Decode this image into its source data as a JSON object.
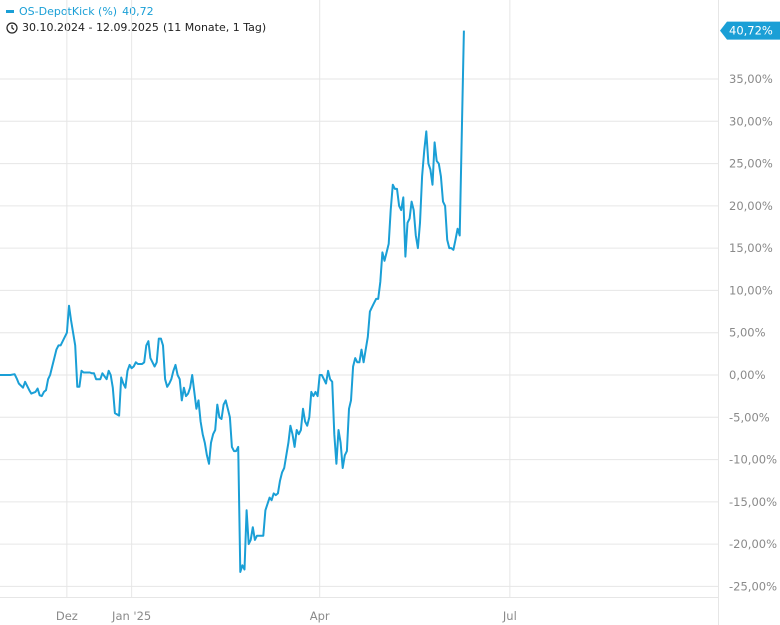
{
  "legend": {
    "series_name": "OS-DepotKick (%)",
    "last_value": "40,72"
  },
  "range_label": "30.10.2024 - 12.09.2025",
  "range_span": "(11 Monate, 1 Tag)",
  "colors": {
    "line": "#1a9fd6",
    "grid": "#e6e6e6",
    "tick_text": "#8a8a8a"
  },
  "icons": {
    "range": "clock-icon"
  },
  "chart_data": {
    "type": "line",
    "title": "",
    "xlabel": "",
    "ylabel": "",
    "ylim": [
      -27,
      41
    ],
    "y_ticks": [
      35,
      30,
      25,
      20,
      15,
      10,
      5,
      0,
      -5,
      -10,
      -15,
      -20,
      -25
    ],
    "y_tick_labels": [
      "35,00%",
      "30,00%",
      "25,00%",
      "20,00%",
      "15,00%",
      "10,00%",
      "5,00%",
      "0,00%",
      "-5,00%",
      "-10,00%",
      "-15,00%",
      "-20,00%",
      "-25,00%"
    ],
    "x_ticks": [
      {
        "label": "Dez",
        "date": "2024-12-01"
      },
      {
        "label": "Jan '25",
        "date": "2025-01-01"
      },
      {
        "label": "Apr",
        "date": "2025-04-01"
      },
      {
        "label": "Jul",
        "date": "2025-07-01"
      }
    ],
    "x_range": [
      "2024-10-30",
      "2025-09-30"
    ],
    "last_value_label": "40,72%",
    "series": [
      {
        "name": "OS-DepotKick (%)",
        "points": [
          [
            "2024-10-30",
            0.0
          ],
          [
            "2024-11-02",
            0.0
          ],
          [
            "2024-11-04",
            0.0
          ],
          [
            "2024-11-06",
            0.1
          ],
          [
            "2024-11-07",
            -0.4
          ],
          [
            "2024-11-08",
            -1.0
          ],
          [
            "2024-11-10",
            -1.5
          ],
          [
            "2024-11-11",
            -0.8
          ],
          [
            "2024-11-13",
            -1.8
          ],
          [
            "2024-11-14",
            -2.2
          ],
          [
            "2024-11-16",
            -2.0
          ],
          [
            "2024-11-17",
            -1.6
          ],
          [
            "2024-11-18",
            -2.4
          ],
          [
            "2024-11-19",
            -2.5
          ],
          [
            "2024-11-20",
            -2.0
          ],
          [
            "2024-11-21",
            -1.8
          ],
          [
            "2024-11-22",
            -0.5
          ],
          [
            "2024-11-23",
            0.0
          ],
          [
            "2024-11-24",
            1.0
          ],
          [
            "2024-11-25",
            2.0
          ],
          [
            "2024-11-26",
            3.0
          ],
          [
            "2024-11-27",
            3.5
          ],
          [
            "2024-11-28",
            3.5
          ],
          [
            "2024-11-29",
            4.0
          ],
          [
            "2024-12-01",
            5.0
          ],
          [
            "2024-12-02",
            8.2
          ],
          [
            "2024-12-03",
            6.5
          ],
          [
            "2024-12-04",
            5.0
          ],
          [
            "2024-12-05",
            3.5
          ],
          [
            "2024-12-06",
            -1.4
          ],
          [
            "2024-12-07",
            -1.4
          ],
          [
            "2024-12-08",
            0.5
          ],
          [
            "2024-12-09",
            0.3
          ],
          [
            "2024-12-10",
            0.3
          ],
          [
            "2024-12-12",
            0.3
          ],
          [
            "2024-12-13",
            0.2
          ],
          [
            "2024-12-14",
            0.2
          ],
          [
            "2024-12-15",
            -0.5
          ],
          [
            "2024-12-16",
            -0.5
          ],
          [
            "2024-12-17",
            -0.5
          ],
          [
            "2024-12-18",
            0.2
          ],
          [
            "2024-12-20",
            -0.5
          ],
          [
            "2024-12-21",
            0.5
          ],
          [
            "2024-12-22",
            0.0
          ],
          [
            "2024-12-23",
            -1.5
          ],
          [
            "2024-12-24",
            -4.5
          ],
          [
            "2024-12-26",
            -4.8
          ],
          [
            "2024-12-27",
            -0.3
          ],
          [
            "2024-12-28",
            -1.0
          ],
          [
            "2024-12-29",
            -1.5
          ],
          [
            "2024-12-30",
            0.5
          ],
          [
            "2024-12-31",
            1.2
          ],
          [
            "2025-01-01",
            0.8
          ],
          [
            "2025-01-02",
            1.0
          ],
          [
            "2025-01-03",
            1.5
          ],
          [
            "2025-01-04",
            1.3
          ],
          [
            "2025-01-06",
            1.3
          ],
          [
            "2025-01-07",
            1.5
          ],
          [
            "2025-01-08",
            3.5
          ],
          [
            "2025-01-09",
            4.0
          ],
          [
            "2025-01-10",
            2.0
          ],
          [
            "2025-01-11",
            1.5
          ],
          [
            "2025-01-12",
            1.0
          ],
          [
            "2025-01-13",
            1.5
          ],
          [
            "2025-01-14",
            4.3
          ],
          [
            "2025-01-15",
            4.3
          ],
          [
            "2025-01-16",
            3.5
          ],
          [
            "2025-01-17",
            -0.5
          ],
          [
            "2025-01-18",
            -1.4
          ],
          [
            "2025-01-19",
            -1.0
          ],
          [
            "2025-01-20",
            -0.5
          ],
          [
            "2025-01-21",
            0.5
          ],
          [
            "2025-01-22",
            1.2
          ],
          [
            "2025-01-23",
            0.0
          ],
          [
            "2025-01-24",
            -0.5
          ],
          [
            "2025-01-25",
            -3.0
          ],
          [
            "2025-01-26",
            -1.5
          ],
          [
            "2025-01-27",
            -2.5
          ],
          [
            "2025-01-28",
            -2.2
          ],
          [
            "2025-01-29",
            -1.5
          ],
          [
            "2025-01-30",
            0.0
          ],
          [
            "2025-01-31",
            -2.0
          ],
          [
            "2025-02-01",
            -4.0
          ],
          [
            "2025-02-02",
            -3.0
          ],
          [
            "2025-02-03",
            -5.5
          ],
          [
            "2025-02-04",
            -7.0
          ],
          [
            "2025-02-05",
            -8.0
          ],
          [
            "2025-02-06",
            -9.5
          ],
          [
            "2025-02-07",
            -10.5
          ],
          [
            "2025-02-08",
            -8.0
          ],
          [
            "2025-02-09",
            -7.0
          ],
          [
            "2025-02-10",
            -6.5
          ],
          [
            "2025-02-11",
            -3.5
          ],
          [
            "2025-02-12",
            -5.0
          ],
          [
            "2025-02-13",
            -5.2
          ],
          [
            "2025-02-14",
            -3.5
          ],
          [
            "2025-02-15",
            -3.0
          ],
          [
            "2025-02-16",
            -4.0
          ],
          [
            "2025-02-17",
            -5.0
          ],
          [
            "2025-02-18",
            -8.5
          ],
          [
            "2025-02-19",
            -9.0
          ],
          [
            "2025-02-20",
            -9.0
          ],
          [
            "2025-02-21",
            -8.5
          ],
          [
            "2025-02-22",
            -23.3
          ],
          [
            "2025-02-23",
            -22.5
          ],
          [
            "2025-02-24",
            -23.0
          ],
          [
            "2025-02-25",
            -16.0
          ],
          [
            "2025-02-26",
            -20.0
          ],
          [
            "2025-02-27",
            -19.5
          ],
          [
            "2025-02-28",
            -18.0
          ],
          [
            "2025-03-01",
            -19.5
          ],
          [
            "2025-03-02",
            -19.0
          ],
          [
            "2025-03-03",
            -19.0
          ],
          [
            "2025-03-05",
            -19.0
          ],
          [
            "2025-03-06",
            -16.0
          ],
          [
            "2025-03-08",
            -14.5
          ],
          [
            "2025-03-09",
            -14.8
          ],
          [
            "2025-03-10",
            -14.0
          ],
          [
            "2025-03-11",
            -14.2
          ],
          [
            "2025-03-12",
            -14.0
          ],
          [
            "2025-03-13",
            -12.5
          ],
          [
            "2025-03-14",
            -11.5
          ],
          [
            "2025-03-15",
            -11.0
          ],
          [
            "2025-03-16",
            -9.5
          ],
          [
            "2025-03-17",
            -8.0
          ],
          [
            "2025-03-18",
            -6.0
          ],
          [
            "2025-03-19",
            -7.0
          ],
          [
            "2025-03-20",
            -8.5
          ],
          [
            "2025-03-21",
            -6.5
          ],
          [
            "2025-03-22",
            -7.0
          ],
          [
            "2025-03-23",
            -6.5
          ],
          [
            "2025-03-24",
            -4.0
          ],
          [
            "2025-03-25",
            -5.5
          ],
          [
            "2025-03-26",
            -6.0
          ],
          [
            "2025-03-27",
            -5.0
          ],
          [
            "2025-03-28",
            -2.0
          ],
          [
            "2025-03-29",
            -2.5
          ],
          [
            "2025-03-30",
            -2.0
          ],
          [
            "2025-03-31",
            -2.5
          ],
          [
            "2025-04-01",
            0.0
          ],
          [
            "2025-04-02",
            0.0
          ],
          [
            "2025-04-03",
            -0.5
          ],
          [
            "2025-04-04",
            -1.0
          ],
          [
            "2025-04-05",
            0.5
          ],
          [
            "2025-04-06",
            -0.5
          ],
          [
            "2025-04-07",
            -0.8
          ],
          [
            "2025-04-08",
            -7.0
          ],
          [
            "2025-04-09",
            -10.5
          ],
          [
            "2025-04-10",
            -6.5
          ],
          [
            "2025-04-11",
            -8.0
          ],
          [
            "2025-04-12",
            -11.0
          ],
          [
            "2025-04-13",
            -9.5
          ],
          [
            "2025-04-14",
            -9.0
          ],
          [
            "2025-04-15",
            -4.0
          ],
          [
            "2025-04-16",
            -3.0
          ],
          [
            "2025-04-17",
            1.0
          ],
          [
            "2025-04-18",
            2.0
          ],
          [
            "2025-04-19",
            1.5
          ],
          [
            "2025-04-20",
            1.5
          ],
          [
            "2025-04-21",
            3.0
          ],
          [
            "2025-04-22",
            1.5
          ],
          [
            "2025-04-23",
            3.0
          ],
          [
            "2025-04-24",
            4.5
          ],
          [
            "2025-04-25",
            7.5
          ],
          [
            "2025-04-26",
            8.0
          ],
          [
            "2025-04-27",
            8.5
          ],
          [
            "2025-04-28",
            9.0
          ],
          [
            "2025-04-29",
            9.0
          ],
          [
            "2025-04-30",
            11.0
          ],
          [
            "2025-05-01",
            14.5
          ],
          [
            "2025-05-02",
            13.5
          ],
          [
            "2025-05-03",
            14.5
          ],
          [
            "2025-05-04",
            15.5
          ],
          [
            "2025-05-05",
            19.5
          ],
          [
            "2025-05-06",
            22.5
          ],
          [
            "2025-05-07",
            22.0
          ],
          [
            "2025-05-08",
            22.0
          ],
          [
            "2025-05-09",
            20.0
          ],
          [
            "2025-05-10",
            19.5
          ],
          [
            "2025-05-11",
            21.0
          ],
          [
            "2025-05-12",
            14.0
          ],
          [
            "2025-05-13",
            18.0
          ],
          [
            "2025-05-14",
            18.5
          ],
          [
            "2025-05-15",
            20.5
          ],
          [
            "2025-05-16",
            19.5
          ],
          [
            "2025-05-17",
            16.5
          ],
          [
            "2025-05-18",
            15.0
          ],
          [
            "2025-05-19",
            18.0
          ],
          [
            "2025-05-20",
            23.5
          ],
          [
            "2025-05-21",
            26.5
          ],
          [
            "2025-05-22",
            28.8
          ],
          [
            "2025-05-23",
            25.0
          ],
          [
            "2025-05-24",
            24.3
          ],
          [
            "2025-05-25",
            22.5
          ],
          [
            "2025-05-26",
            27.5
          ],
          [
            "2025-05-27",
            25.3
          ],
          [
            "2025-05-28",
            25.0
          ],
          [
            "2025-05-29",
            23.5
          ],
          [
            "2025-05-30",
            20.5
          ],
          [
            "2025-05-31",
            20.0
          ],
          [
            "2025-06-01",
            16.0
          ],
          [
            "2025-06-02",
            15.0
          ],
          [
            "2025-06-03",
            15.0
          ],
          [
            "2025-06-04",
            14.8
          ],
          [
            "2025-06-05",
            16.0
          ],
          [
            "2025-06-06",
            17.3
          ],
          [
            "2025-06-07",
            16.5
          ],
          [
            "2025-06-09",
            40.72
          ]
        ]
      }
    ]
  }
}
